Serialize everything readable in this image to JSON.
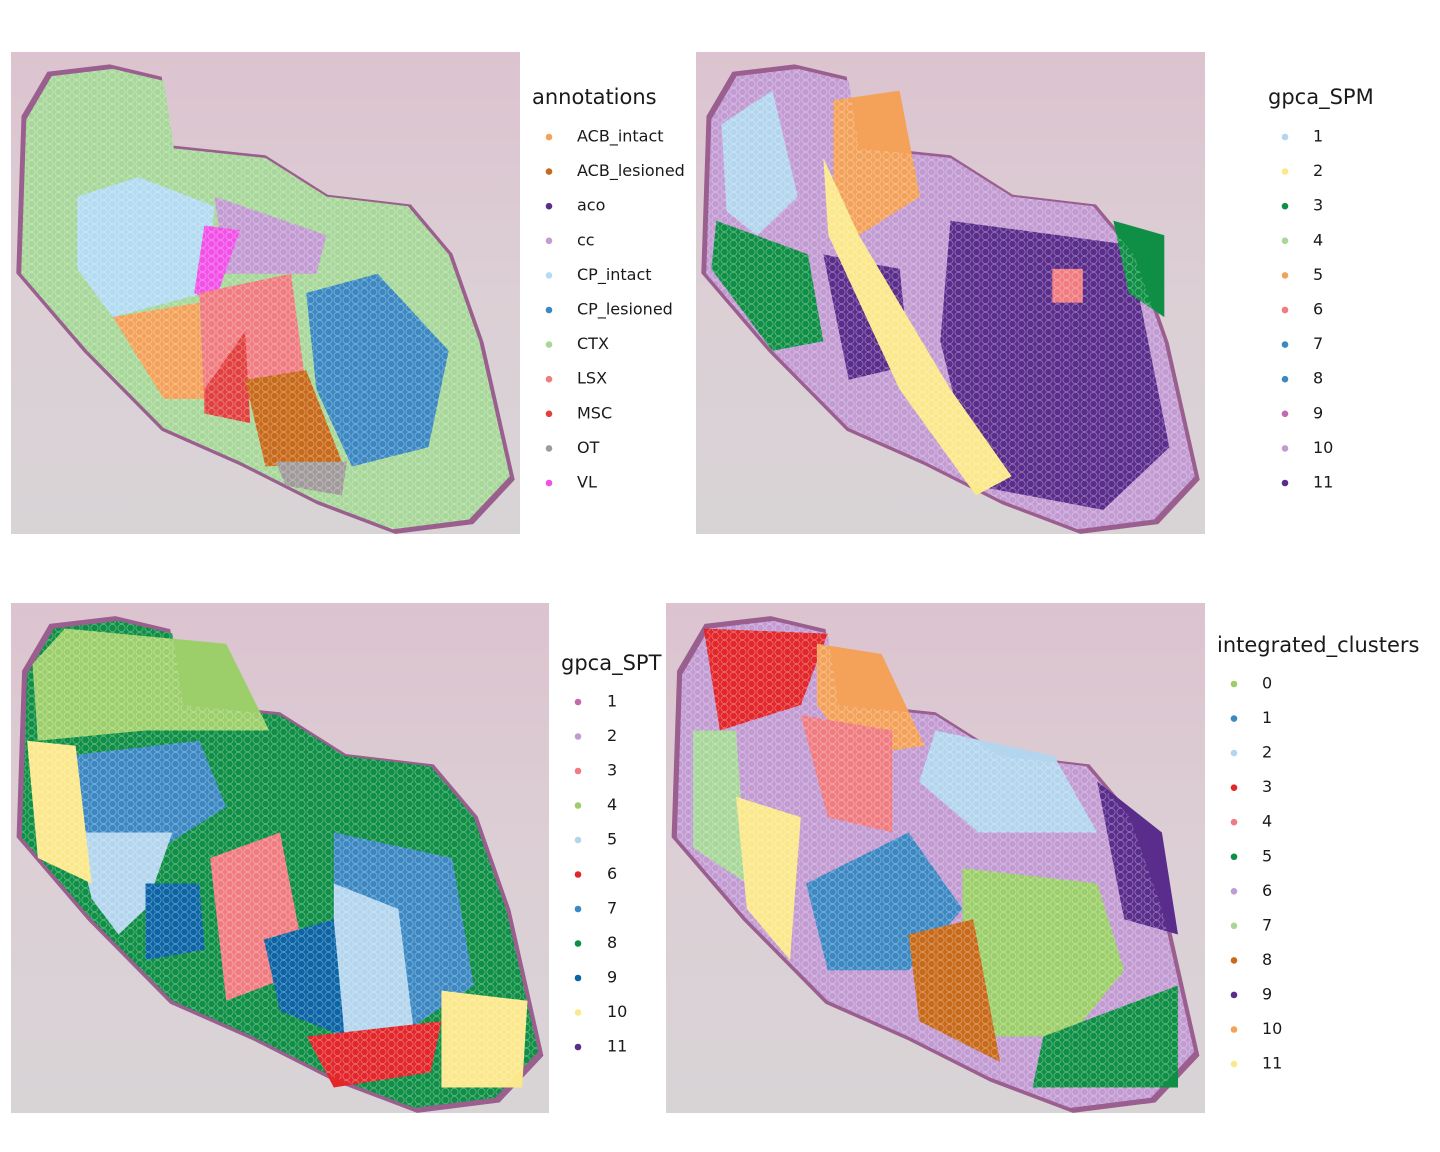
{
  "panels": [
    {
      "legend": {
        "title": "annotations",
        "items": [
          {
            "label": "ACB_intact",
            "color": "#f4a259"
          },
          {
            "label": "ACB_lesioned",
            "color": "#c86a1a"
          },
          {
            "label": "aco",
            "color": "#5a2d8c"
          },
          {
            "label": "cc",
            "color": "#c39bd3"
          },
          {
            "label": "CP_intact",
            "color": "#b3dbf2"
          },
          {
            "label": "CP_lesioned",
            "color": "#3b88c3"
          },
          {
            "label": "CTX",
            "color": "#a8d79a"
          },
          {
            "label": "LSX",
            "color": "#f07b80"
          },
          {
            "label": "MSC",
            "color": "#e2403f"
          },
          {
            "label": "OT",
            "color": "#a09a9a"
          },
          {
            "label": "VL",
            "color": "#f251e8"
          }
        ]
      }
    },
    {
      "legend": {
        "title": "gpca_SPM",
        "items": [
          {
            "label": "1",
            "color": "#b3d5ee"
          },
          {
            "label": "2",
            "color": "#fbe88a"
          },
          {
            "label": "3",
            "color": "#0f8f45"
          },
          {
            "label": "4",
            "color": "#a8d79a"
          },
          {
            "label": "5",
            "color": "#f4a259"
          },
          {
            "label": "6",
            "color": "#f07b80"
          },
          {
            "label": "7",
            "color": "#3b88c3"
          },
          {
            "label": "8",
            "color": "#3b88c3"
          },
          {
            "label": "9",
            "color": "#c569ad"
          },
          {
            "label": "10",
            "color": "#c39bd3"
          },
          {
            "label": "11",
            "color": "#5a2d8c"
          }
        ]
      }
    },
    {
      "legend": {
        "title": "gpca_SPT",
        "items": [
          {
            "label": "1",
            "color": "#c569ad"
          },
          {
            "label": "2",
            "color": "#c39bd3"
          },
          {
            "label": "3",
            "color": "#f07b80"
          },
          {
            "label": "4",
            "color": "#9ccf6a"
          },
          {
            "label": "5",
            "color": "#b3d5ee"
          },
          {
            "label": "6",
            "color": "#e2262a"
          },
          {
            "label": "7",
            "color": "#3b88c3"
          },
          {
            "label": "8",
            "color": "#0f8f45"
          },
          {
            "label": "9",
            "color": "#0b64a5"
          },
          {
            "label": "10",
            "color": "#fbe88a"
          },
          {
            "label": "11",
            "color": "#5a2d8c"
          }
        ]
      }
    },
    {
      "legend": {
        "title": "integrated_clusters",
        "items": [
          {
            "label": "0",
            "color": "#9ccf6a"
          },
          {
            "label": "1",
            "color": "#3b88c3"
          },
          {
            "label": "2",
            "color": "#b3d5ee"
          },
          {
            "label": "3",
            "color": "#e2262a"
          },
          {
            "label": "4",
            "color": "#f07b80"
          },
          {
            "label": "5",
            "color": "#0f8f45"
          },
          {
            "label": "6",
            "color": "#c39bd3"
          },
          {
            "label": "7",
            "color": "#a8d79a"
          },
          {
            "label": "8",
            "color": "#c86a1a"
          },
          {
            "label": "9",
            "color": "#5a2d8c"
          },
          {
            "label": "10",
            "color": "#f4a259"
          },
          {
            "label": "11",
            "color": "#fbe88a"
          }
        ]
      }
    }
  ]
}
